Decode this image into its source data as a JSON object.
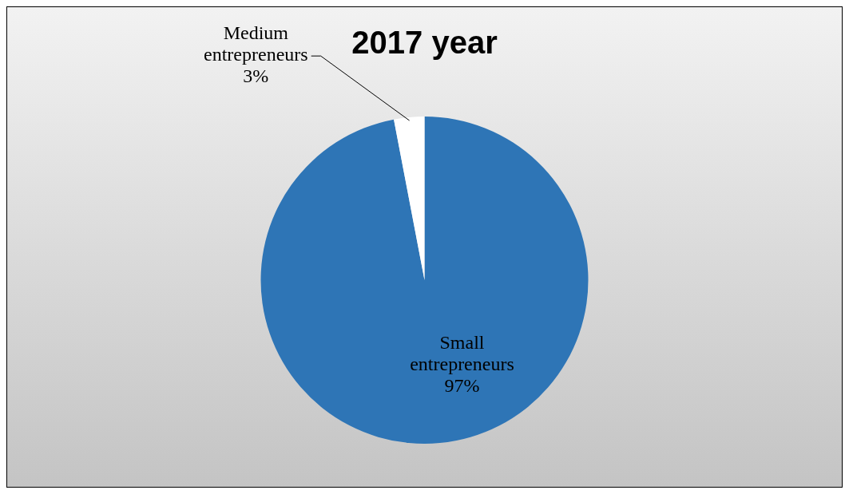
{
  "chart_data": {
    "type": "pie",
    "title": "2017 year",
    "categories": [
      "Small entrepreneurs",
      "Medium entrepreneurs"
    ],
    "values": [
      97,
      3
    ],
    "colors": [
      "#2e75b6",
      "#ffffff"
    ],
    "value_labels": [
      "97%",
      "3%"
    ],
    "legend": false
  }
}
